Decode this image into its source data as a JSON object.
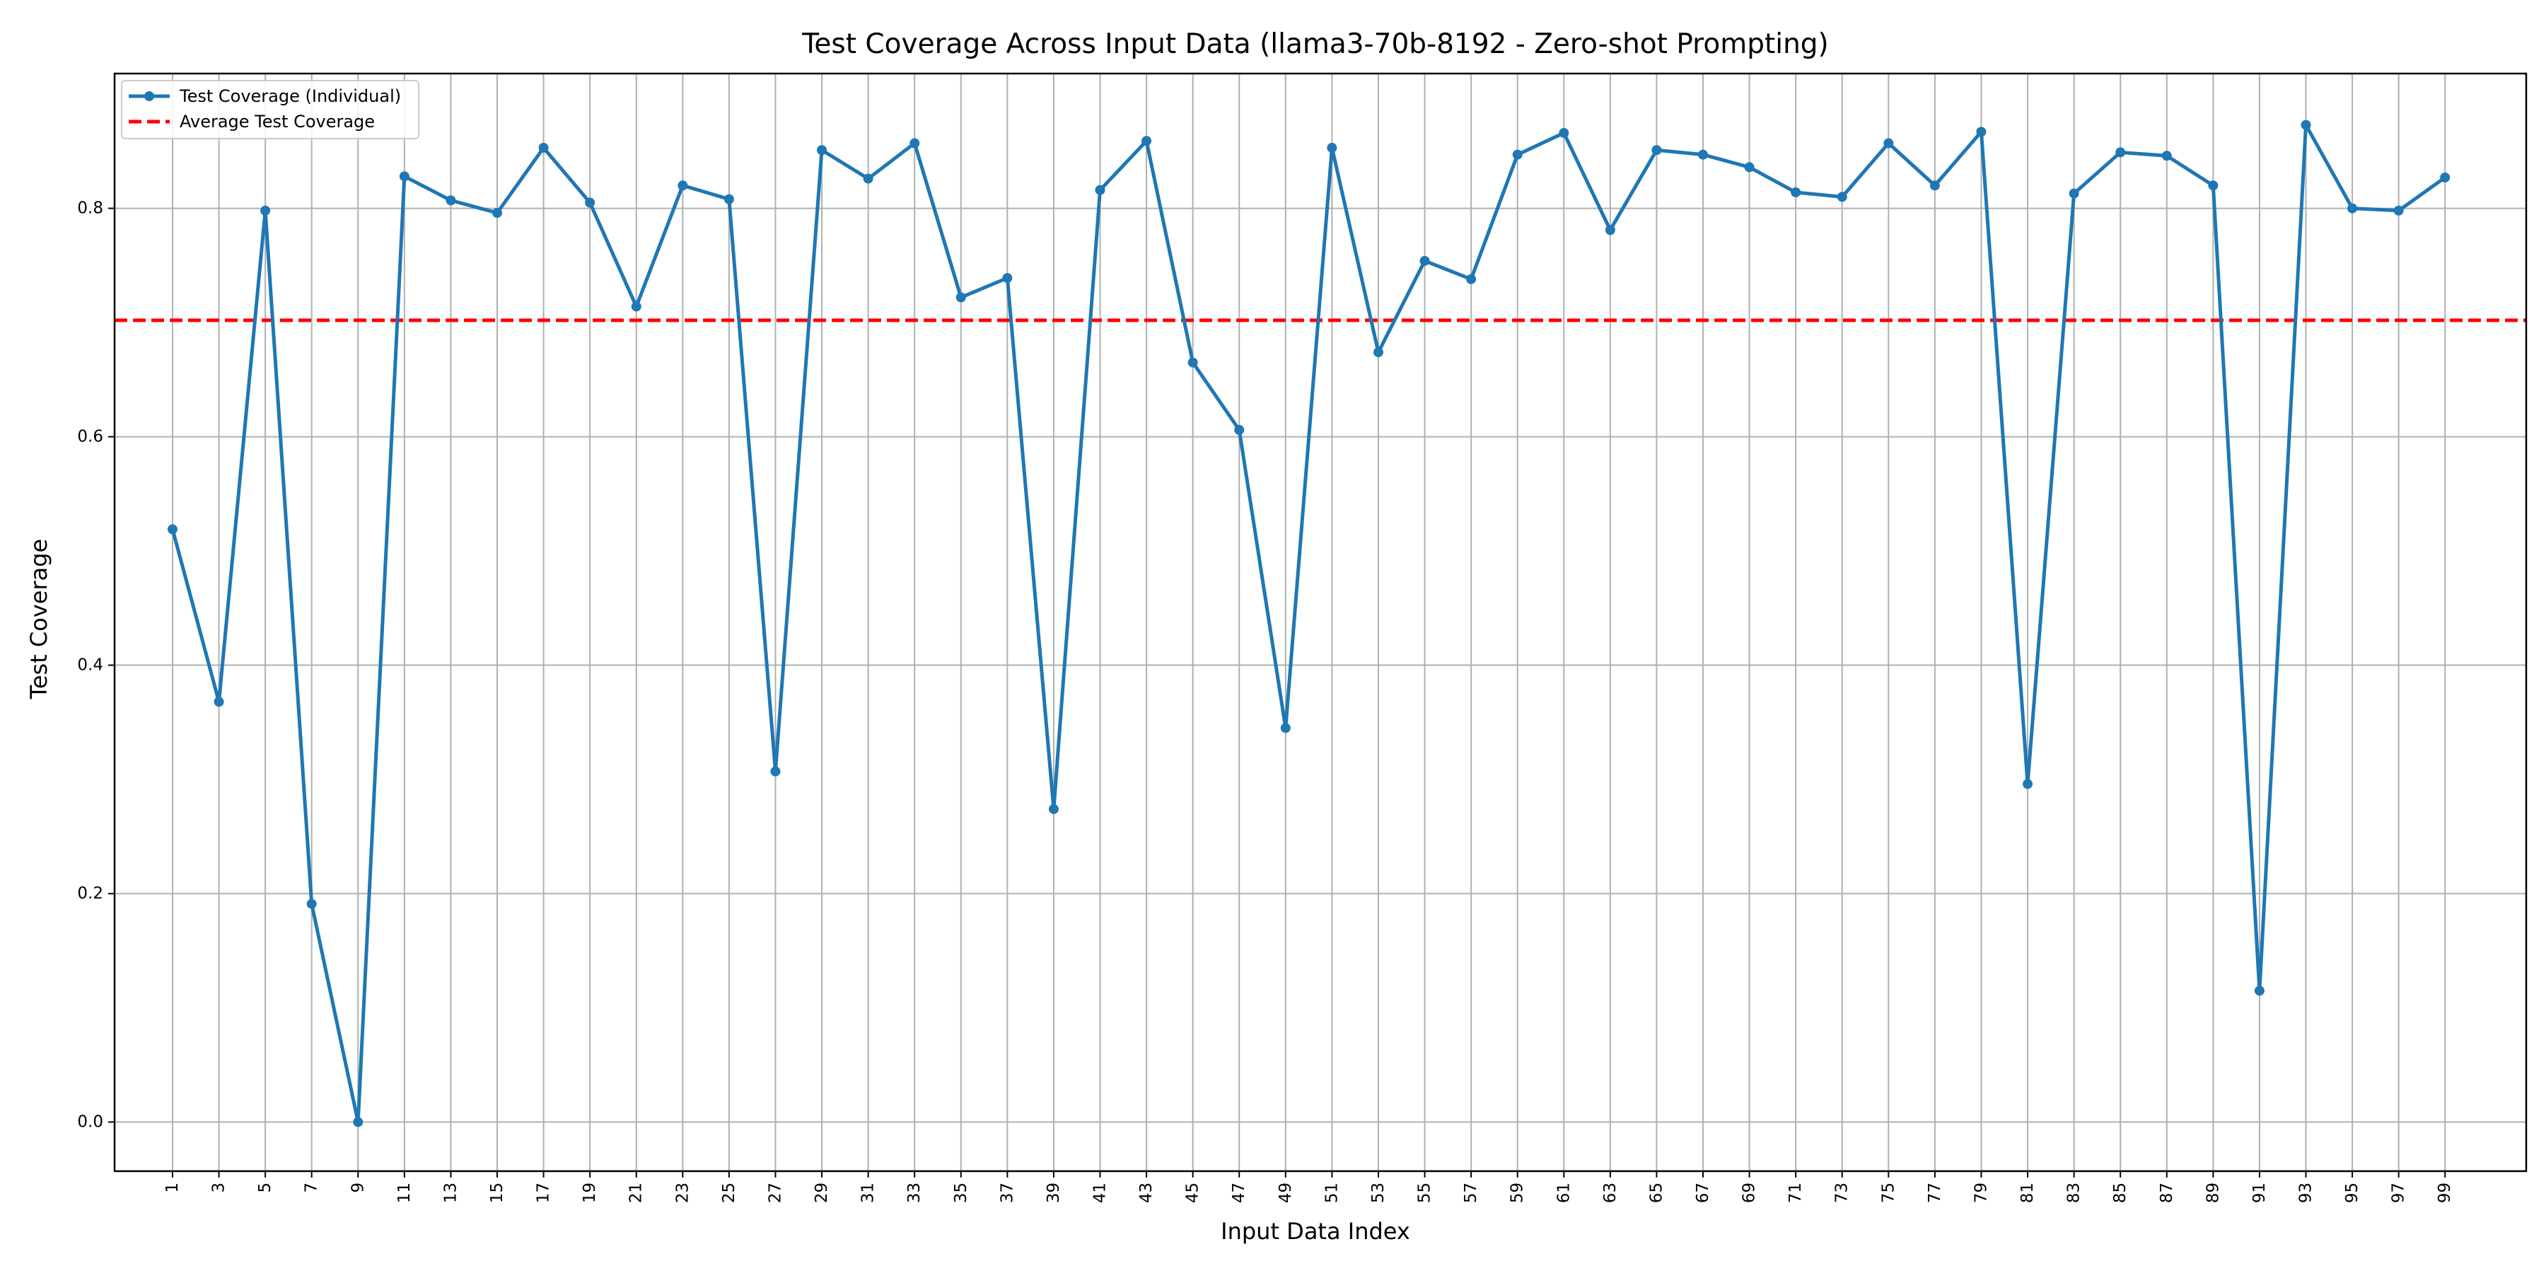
{
  "chart_data": {
    "type": "line",
    "title": "Test Coverage Across Input Data (llama3-70b-8192 - Zero-shot Prompting)",
    "xlabel": "Input Data Index",
    "ylabel": "Test Coverage",
    "xlim": [
      -1.5,
      102.5
    ],
    "ylim": [
      -0.043,
      0.918
    ],
    "x": [
      1,
      3,
      5,
      7,
      9,
      11,
      13,
      15,
      17,
      19,
      21,
      23,
      25,
      27,
      29,
      31,
      33,
      35,
      37,
      39,
      41,
      43,
      45,
      47,
      49,
      51,
      53,
      55,
      57,
      59,
      61,
      63,
      65,
      67,
      69,
      71,
      73,
      75,
      77,
      79,
      81,
      83,
      85,
      87,
      89,
      91,
      93,
      95,
      97,
      99
    ],
    "x_tick_labels": [
      "1",
      "3",
      "5",
      "7",
      "9",
      "11",
      "13",
      "15",
      "17",
      "19",
      "21",
      "23",
      "25",
      "27",
      "29",
      "31",
      "33",
      "35",
      "37",
      "39",
      "41",
      "43",
      "45",
      "47",
      "49",
      "51",
      "53",
      "55",
      "57",
      "59",
      "61",
      "63",
      "65",
      "67",
      "69",
      "71",
      "73",
      "75",
      "77",
      "79",
      "81",
      "83",
      "85",
      "87",
      "89",
      "91",
      "93",
      "95",
      "97",
      "99"
    ],
    "y_ticks": [
      0.0,
      0.2,
      0.4,
      0.6,
      0.8
    ],
    "y_tick_labels": [
      "0.0",
      "0.2",
      "0.4",
      "0.6",
      "0.8"
    ],
    "grid": true,
    "legend_position": "top-left",
    "series": [
      {
        "name": "Test Coverage (Individual)",
        "color": "#1f77b4",
        "style": "solid-line-with-markers",
        "values": [
          0.519,
          0.368,
          0.798,
          0.191,
          0.0,
          0.828,
          0.807,
          0.796,
          0.853,
          0.805,
          0.714,
          0.82,
          0.808,
          0.307,
          0.851,
          0.826,
          0.857,
          0.722,
          0.739,
          0.274,
          0.816,
          0.859,
          0.665,
          0.606,
          0.345,
          0.853,
          0.674,
          0.754,
          0.738,
          0.847,
          0.866,
          0.781,
          0.851,
          0.847,
          0.836,
          0.814,
          0.81,
          0.857,
          0.82,
          0.867,
          0.296,
          0.813,
          0.849,
          0.846,
          0.82,
          0.115,
          0.873,
          0.8,
          0.798,
          0.827
        ]
      }
    ],
    "reference_lines": [
      {
        "name": "Average Test Coverage",
        "y": 0.702,
        "color": "#ff0000",
        "style": "dashed"
      }
    ]
  }
}
